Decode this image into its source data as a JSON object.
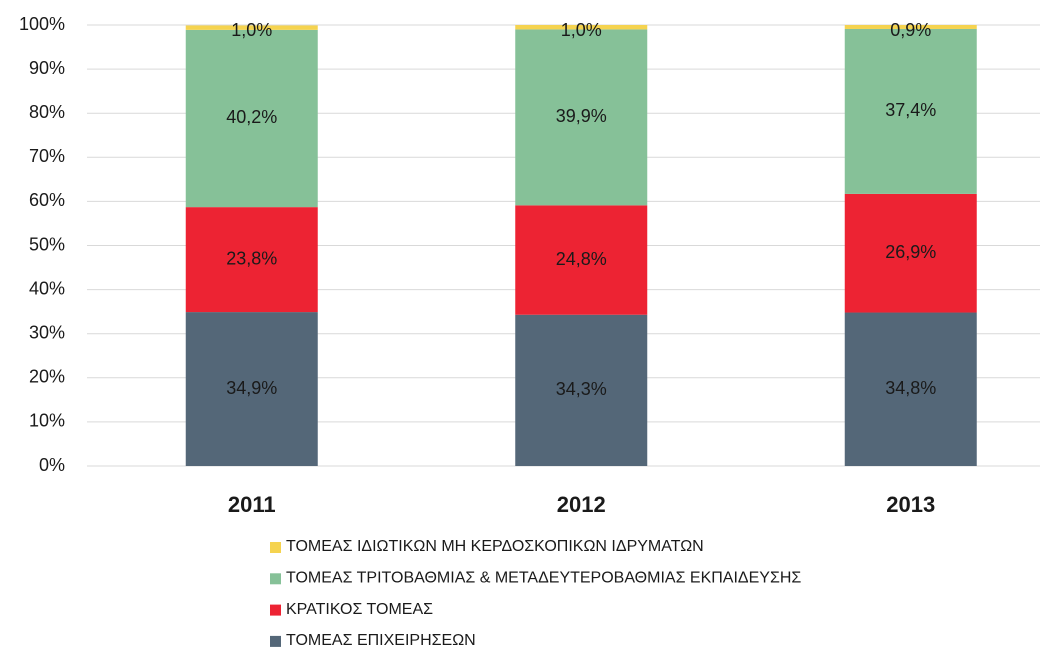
{
  "chart_data": {
    "type": "stacked_bar",
    "categories": [
      "2011",
      "2012",
      "2013"
    ],
    "series": [
      {
        "name": "ΤΟΜΕΑΣ ΕΠΙΧΕΙΡΗΣΕΩΝ",
        "color": "#546778",
        "values": [
          34.9,
          34.3,
          34.8
        ],
        "value_labels": [
          "34,9%",
          "34,3%",
          "34,8%"
        ]
      },
      {
        "name": "ΚΡΑΤΙΚΟΣ ΤΟΜΕΑΣ",
        "color": "#ed2333",
        "values": [
          23.8,
          24.8,
          26.9
        ],
        "value_labels": [
          "23,8%",
          "24,8%",
          "26,9%"
        ]
      },
      {
        "name": "ΤΟΜΕΑΣ ΤΡΙΤΟΒΑΘΜΙΑΣ & ΜΕΤΑΔΕΥΤΕΡΟΒΑΘΜΙΑΣ ΕΚΠΑΙΔΕΥΣΗΣ",
        "color": "#86c198",
        "values": [
          40.2,
          39.9,
          37.4
        ],
        "value_labels": [
          "40,2%",
          "39,9%",
          "37,4%"
        ]
      },
      {
        "name": "ΤΟΜΕΑΣ ΙΔΙΩΤΙΚΩΝ ΜΗ ΚΕΡΔΟΣΚΟΠΙΚΩΝ ΙΔΡΥΜΑΤΩΝ",
        "color": "#f5d34f",
        "values": [
          1.0,
          1.0,
          0.9
        ],
        "value_labels": [
          "1,0%",
          "1,0%",
          "0,9%"
        ]
      }
    ],
    "ylim": [
      0,
      100
    ],
    "yticks": [
      {
        "value": 0,
        "label": "0%"
      },
      {
        "value": 10,
        "label": "10%"
      },
      {
        "value": 20,
        "label": "20%"
      },
      {
        "value": 30,
        "label": "30%"
      },
      {
        "value": 40,
        "label": "40%"
      },
      {
        "value": 50,
        "label": "50%"
      },
      {
        "value": 60,
        "label": "60%"
      },
      {
        "value": 70,
        "label": "70%"
      },
      {
        "value": 80,
        "label": "80%"
      },
      {
        "value": 90,
        "label": "90%"
      },
      {
        "value": 100,
        "label": "100%"
      }
    ],
    "grid": true,
    "legend": "bottom"
  }
}
